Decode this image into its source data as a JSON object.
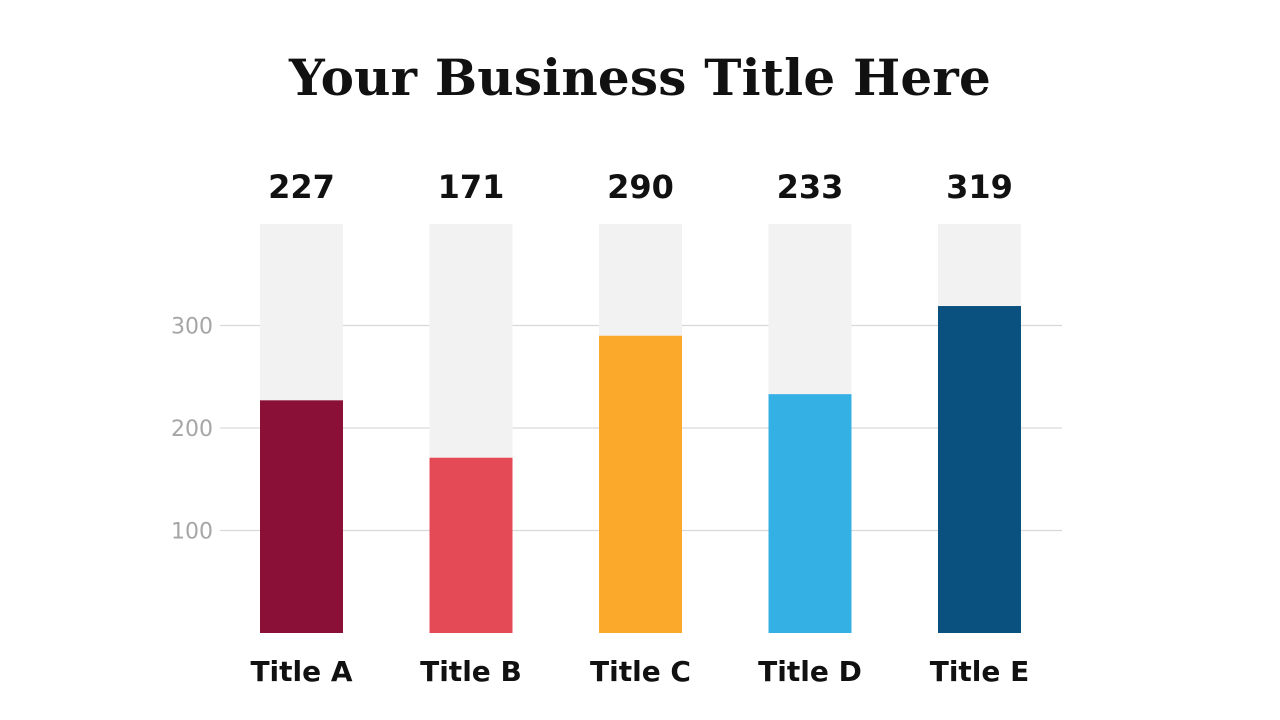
{
  "chart_data": {
    "type": "bar",
    "title": "Your Business Title Here",
    "categories": [
      "Title A",
      "Title B",
      "Title C",
      "Title D",
      "Title E"
    ],
    "values": [
      227,
      171,
      290,
      233,
      319
    ],
    "colors": [
      "#8b1038",
      "#e34a56",
      "#fba92a",
      "#35b0e4",
      "#0a5180"
    ],
    "track_color": "#f2f2f2",
    "ylim": [
      0,
      400
    ],
    "yticks": [
      100,
      200,
      300
    ],
    "grid": true,
    "xlabel": "",
    "ylabel": "",
    "legend": "none"
  }
}
